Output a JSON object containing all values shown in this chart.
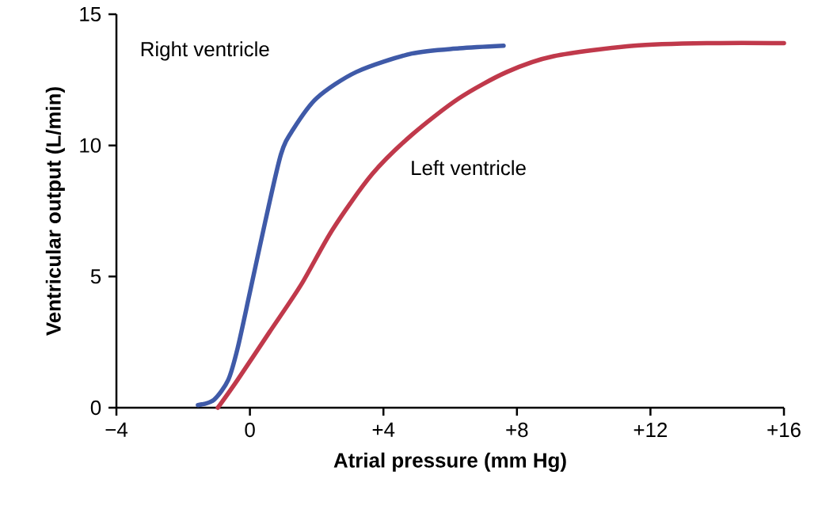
{
  "chart_data": {
    "type": "line",
    "xlabel": "Atrial pressure (mm Hg)",
    "ylabel": "Ventricular output (L/min)",
    "xlim": [
      -4,
      16
    ],
    "ylim": [
      0,
      15
    ],
    "xticks": [
      {
        "value": -4,
        "label": "−4"
      },
      {
        "value": 0,
        "label": "0"
      },
      {
        "value": 4,
        "label": "+4"
      },
      {
        "value": 8,
        "label": "+8"
      },
      {
        "value": 12,
        "label": "+12"
      },
      {
        "value": 16,
        "label": "+16"
      }
    ],
    "yticks": [
      0,
      5,
      10,
      15
    ],
    "grid": false,
    "legend": false,
    "marker": "none",
    "line_style": "solid",
    "series": [
      {
        "name": "Right ventricle",
        "color": "#3f5aa8",
        "x": [
          -1.56,
          -1.08,
          -0.65,
          -0.37,
          0,
          0.46,
          0.93,
          1.29,
          2.0,
          3.19,
          4.85,
          6.27,
          7.6
        ],
        "values": [
          0.1,
          0.3,
          1.06,
          2.26,
          4.4,
          7.1,
          9.66,
          10.6,
          11.8,
          12.8,
          13.5,
          13.7,
          13.8
        ]
      },
      {
        "name": "Left ventricle",
        "color": "#c0394b",
        "x": [
          -0.96,
          -0.37,
          0.58,
          1.53,
          2.48,
          3.66,
          4.85,
          6.27,
          7.7,
          9.1,
          11.5,
          13.9,
          16
        ],
        "values": [
          0,
          1.06,
          2.87,
          4.68,
          6.8,
          8.9,
          10.4,
          11.8,
          12.8,
          13.4,
          13.8,
          13.9,
          13.9
        ]
      }
    ]
  }
}
